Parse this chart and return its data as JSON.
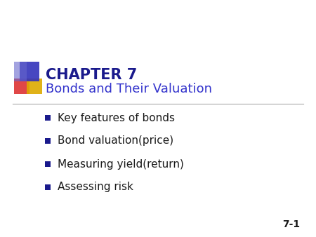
{
  "title_line1": "CHAPTER 7",
  "title_line2": "Bonds and Their Valuation",
  "title1_color": "#1a1a8c",
  "title2_color": "#3333cc",
  "bullet_items": [
    "Key features of bonds",
    "Bond valuation(price)",
    "Measuring yield(return)",
    "Assessing risk"
  ],
  "bullet_color": "#1a1a8c",
  "bullet_text_color": "#1a1a1a",
  "background_color": "#ffffff",
  "slide_number": "7-1",
  "slide_number_color": "#1a1a1a",
  "line_color": "#aaaaaa",
  "deco_blue": "#3333bb",
  "deco_red": "#dd3333",
  "deco_yellow": "#ddaa00",
  "deco_blue2": "#6666cc"
}
